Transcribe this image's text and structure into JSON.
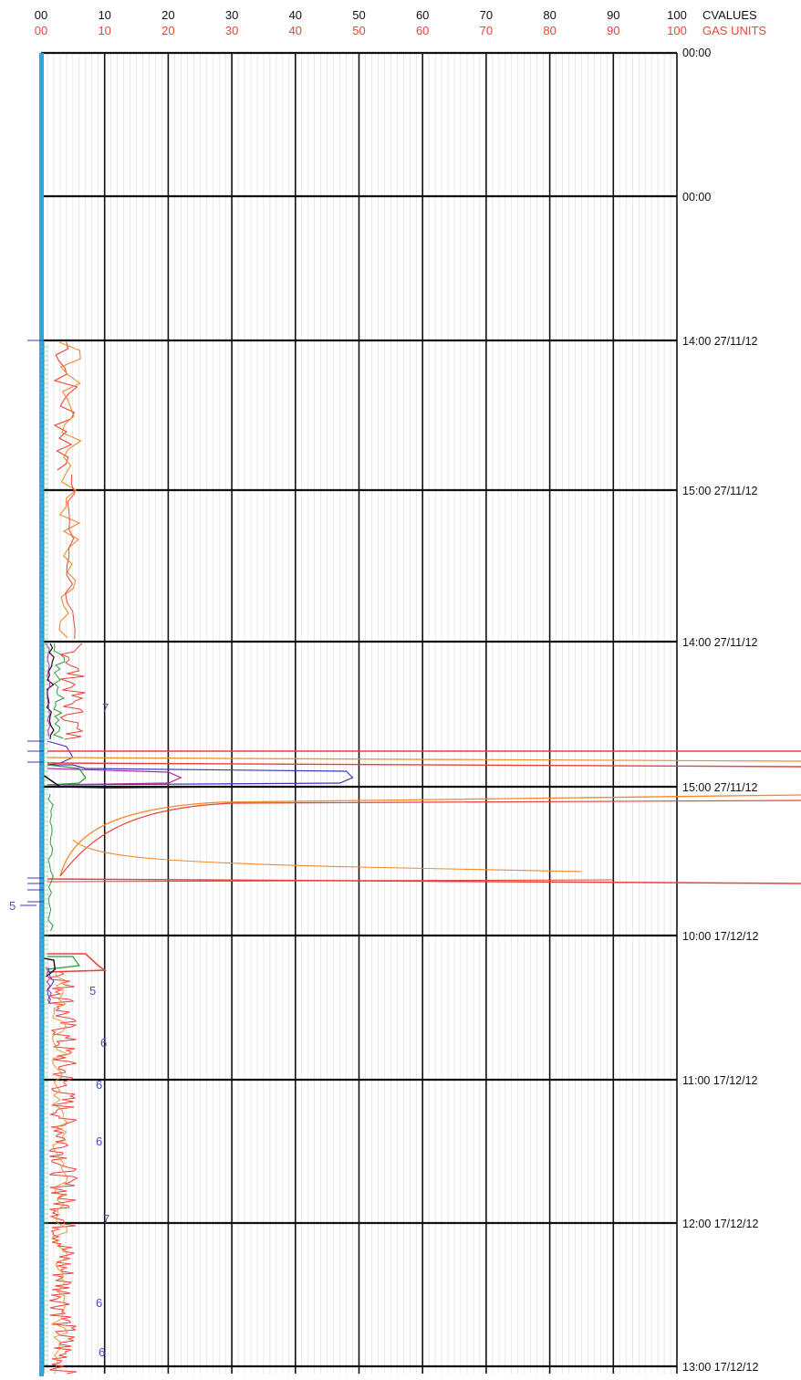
{
  "chart_data": {
    "type": "line",
    "colors": {
      "gas": "#e8433a",
      "orange": "#f08a2a",
      "green": "#2c9a3a",
      "black": "#111111",
      "blue": "#3a3ac0",
      "magenta": "#b02aa0",
      "axis_blue": "#2aa8e0"
    },
    "x_axis_top": {
      "title": "CVALUES",
      "ticks": [
        "00",
        "10",
        "20",
        "30",
        "40",
        "50",
        "60",
        "70",
        "80",
        "90",
        "100"
      ]
    },
    "x_axis_gas": {
      "title": "GAS UNITS",
      "ticks": [
        "00",
        "10",
        "20",
        "30",
        "40",
        "50",
        "60",
        "70",
        "80",
        "90",
        "100"
      ]
    },
    "xlim": [
      0,
      100
    ],
    "time_labels": [
      "00:00",
      "00:00",
      "14:00 27/11/12",
      "15:00 27/11/12",
      "14:00 27/11/12",
      "15:00 27/11/12",
      "10:00 17/12/12",
      "11:00 17/12/12",
      "12:00 17/12/12",
      "13:00 17/12/12"
    ],
    "annotations": [
      "7",
      "5",
      "5",
      "6",
      "6",
      "6",
      "7",
      "6",
      "6"
    ],
    "series": [
      {
        "color": "gas",
        "description_values": [
          3,
          5,
          4,
          6,
          4,
          7,
          5,
          8,
          5,
          4,
          5
        ]
      },
      {
        "color": "orange",
        "description_values": [
          3,
          4,
          6,
          4,
          5,
          7,
          5,
          9,
          4,
          5,
          4
        ]
      }
    ],
    "grid": true
  }
}
